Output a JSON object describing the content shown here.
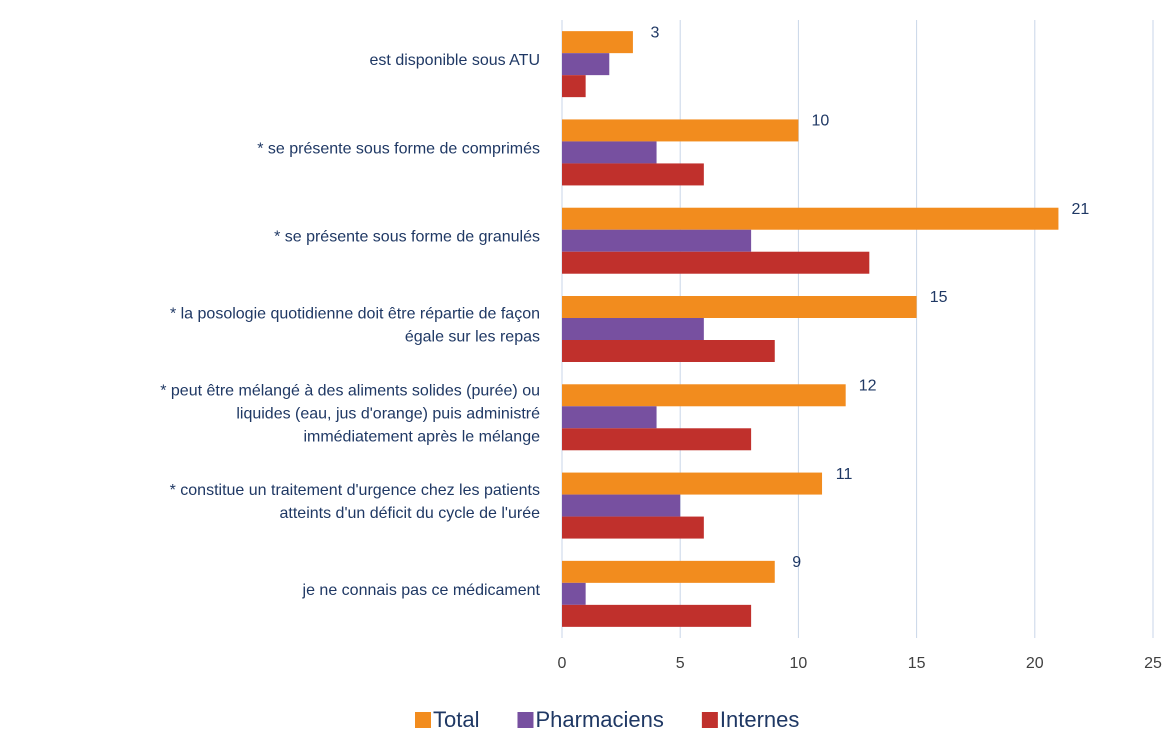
{
  "chart_data": {
    "type": "barh",
    "categories": [
      "est disponible sous ATU",
      "*  se présente sous forme de comprimés",
      "*  se présente sous forme de granulés",
      "*  la posologie quotidienne doit être répartie de façon\négale sur les repas",
      "*  peut être mélangé à des aliments solides (purée) ou\nliquides (eau, jus d'orange) puis administré\nimmédiatement après le mélange",
      "*  constitue un traitement d'urgence chez les patients\natteints d'un déficit du cycle de l'urée",
      "je ne connais pas ce médicament"
    ],
    "series": [
      {
        "name": "Total",
        "color": "#f28c1e",
        "values": [
          3,
          10,
          21,
          15,
          12,
          11,
          9
        ],
        "show_labels": true
      },
      {
        "name": "Pharmaciens",
        "color": "#7750a0",
        "values": [
          2,
          4,
          8,
          6,
          4,
          5,
          1
        ]
      },
      {
        "name": "Internes",
        "color": "#c0302c",
        "values": [
          1,
          6,
          13,
          9,
          8,
          6,
          8
        ]
      }
    ],
    "xlim": [
      0,
      25
    ],
    "xticks": [
      0,
      5,
      10,
      15,
      20,
      25
    ],
    "grid": true,
    "legend": "bottom"
  }
}
